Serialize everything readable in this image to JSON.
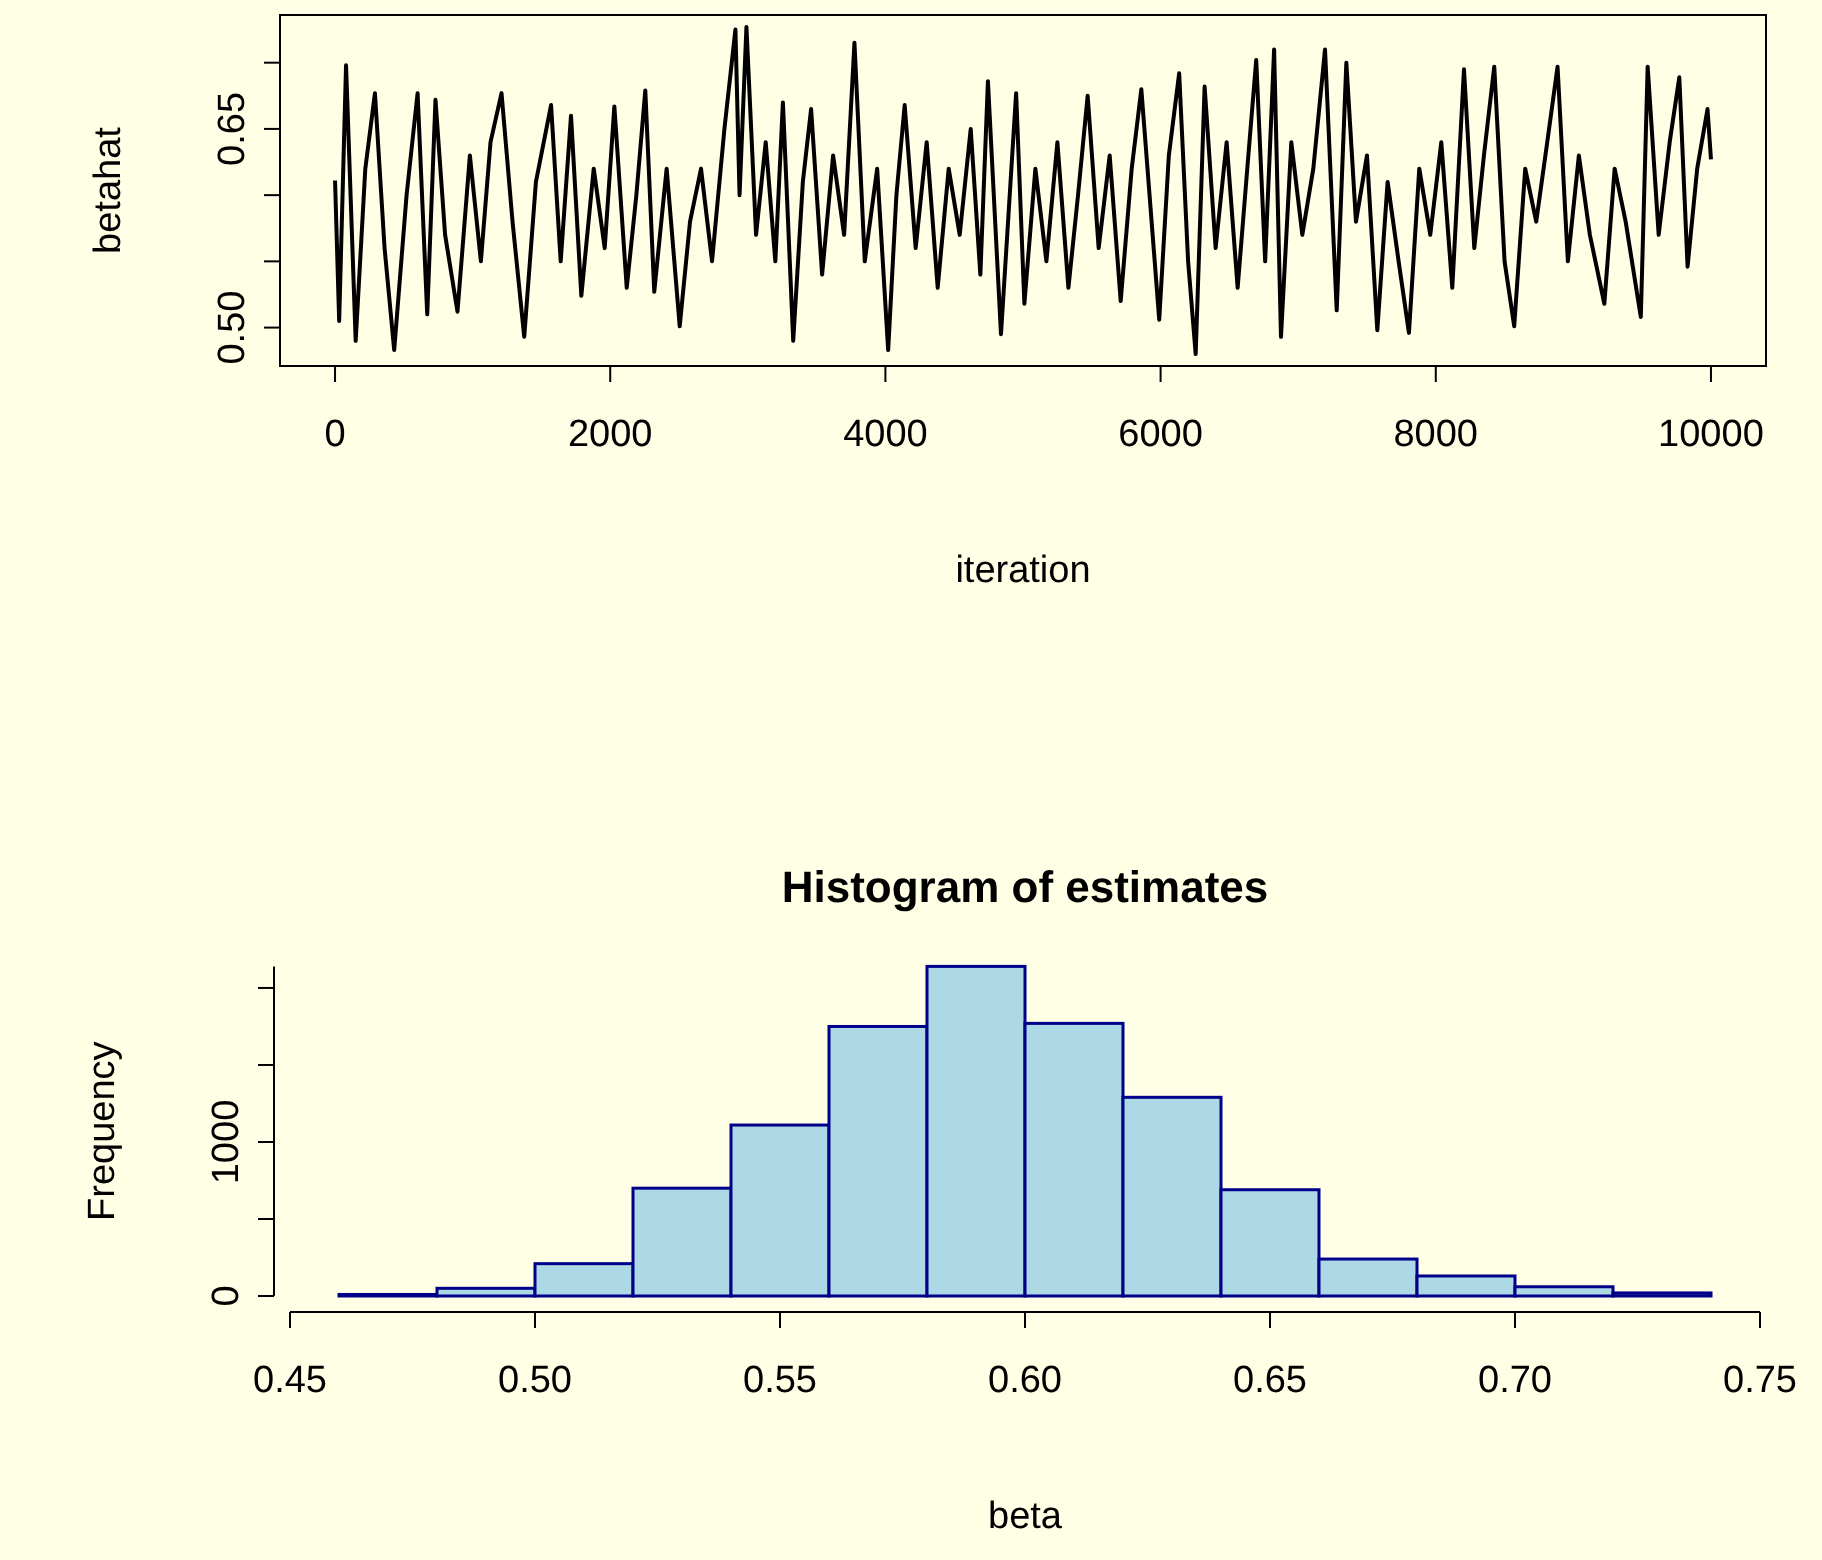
{
  "chart_data": [
    {
      "type": "line",
      "xlabel": "iteration",
      "ylabel": "betahat",
      "xlim": [
        -400,
        10400
      ],
      "ylim": [
        0.471,
        0.736
      ],
      "xticks": [
        0,
        2000,
        4000,
        6000,
        8000,
        10000
      ],
      "yticks": [
        {
          "value": 0.5,
          "label": "0.50"
        },
        {
          "value": 0.55,
          "label": null
        },
        {
          "value": 0.6,
          "label": null
        },
        {
          "value": 0.65,
          "label": "0.65"
        },
        {
          "value": 0.7,
          "label": null
        }
      ],
      "series": [
        {
          "color": "#000000",
          "x": [
            0,
            30,
            80,
            150,
            220,
            290,
            360,
            430,
            520,
            600,
            670,
            730,
            800,
            890,
            980,
            1060,
            1130,
            1210,
            1290,
            1375,
            1460,
            1570,
            1640,
            1715,
            1790,
            1880,
            1960,
            2030,
            2120,
            2190,
            2255,
            2320,
            2410,
            2505,
            2580,
            2660,
            2740,
            2830,
            2910,
            2940,
            2990,
            3060,
            3130,
            3200,
            3255,
            3330,
            3400,
            3460,
            3540,
            3620,
            3700,
            3775,
            3850,
            3940,
            4020,
            4080,
            4140,
            4220,
            4300,
            4380,
            4460,
            4540,
            4620,
            4690,
            4745,
            4840,
            4950,
            5010,
            5090,
            5170,
            5250,
            5330,
            5400,
            5470,
            5550,
            5630,
            5710,
            5790,
            5860,
            5990,
            6060,
            6135,
            6200,
            6255,
            6320,
            6400,
            6480,
            6560,
            6630,
            6695,
            6760,
            6825,
            6875,
            6950,
            7030,
            7110,
            7195,
            7280,
            7350,
            7420,
            7500,
            7575,
            7650,
            7730,
            7805,
            7880,
            7960,
            8040,
            8120,
            8205,
            8280,
            8350,
            8425,
            8500,
            8570,
            8650,
            8730,
            8810,
            8885,
            8960,
            9040,
            9120,
            9225,
            9300,
            9380,
            9490,
            9540,
            9620,
            9700,
            9770,
            9830,
            9900,
            9975,
            10000
          ],
          "values": [
            0.611,
            0.505,
            0.698,
            0.49,
            0.62,
            0.677,
            0.56,
            0.483,
            0.6,
            0.677,
            0.51,
            0.672,
            0.57,
            0.512,
            0.63,
            0.55,
            0.64,
            0.677,
            0.58,
            0.493,
            0.61,
            0.668,
            0.55,
            0.66,
            0.524,
            0.62,
            0.56,
            0.667,
            0.53,
            0.6,
            0.679,
            0.527,
            0.62,
            0.501,
            0.58,
            0.62,
            0.55,
            0.65,
            0.725,
            0.6,
            0.727,
            0.57,
            0.64,
            0.55,
            0.67,
            0.49,
            0.61,
            0.665,
            0.54,
            0.63,
            0.57,
            0.715,
            0.55,
            0.62,
            0.483,
            0.6,
            0.668,
            0.56,
            0.64,
            0.53,
            0.62,
            0.57,
            0.65,
            0.54,
            0.686,
            0.495,
            0.677,
            0.518,
            0.62,
            0.55,
            0.64,
            0.53,
            0.6,
            0.675,
            0.56,
            0.63,
            0.52,
            0.62,
            0.68,
            0.506,
            0.63,
            0.692,
            0.55,
            0.48,
            0.682,
            0.56,
            0.64,
            0.53,
            0.62,
            0.702,
            0.55,
            0.71,
            0.493,
            0.64,
            0.57,
            0.62,
            0.71,
            0.513,
            0.7,
            0.58,
            0.63,
            0.498,
            0.61,
            0.55,
            0.496,
            0.62,
            0.57,
            0.64,
            0.53,
            0.695,
            0.56,
            0.63,
            0.697,
            0.55,
            0.501,
            0.62,
            0.58,
            0.64,
            0.697,
            0.55,
            0.63,
            0.57,
            0.518,
            0.62,
            0.58,
            0.508,
            0.697,
            0.57,
            0.64,
            0.689,
            0.546,
            0.62,
            0.665,
            0.627
          ]
        }
      ]
    },
    {
      "type": "histogram",
      "title": "Histogram of estimates",
      "xlabel": "beta",
      "ylabel": "Frequency",
      "color": "#add8e6",
      "bins": [
        0.46,
        0.48,
        0.5,
        0.52,
        0.54,
        0.56,
        0.58,
        0.6,
        0.62,
        0.64,
        0.66,
        0.68,
        0.7,
        0.72,
        0.74
      ],
      "values": [
        10,
        50,
        210,
        700,
        1110,
        1750,
        2140,
        1770,
        1290,
        690,
        240,
        130,
        60,
        20
      ],
      "xlim": [
        0.45,
        0.75
      ],
      "ylim": [
        0,
        2140
      ],
      "xticks": [
        {
          "value": 0.45,
          "label": "0.45"
        },
        {
          "value": 0.5,
          "label": "0.50"
        },
        {
          "value": 0.55,
          "label": "0.55"
        },
        {
          "value": 0.6,
          "label": "0.60"
        },
        {
          "value": 0.65,
          "label": "0.65"
        },
        {
          "value": 0.7,
          "label": "0.70"
        },
        {
          "value": 0.75,
          "label": "0.75"
        }
      ],
      "yticks": [
        0,
        {
          "value": 500,
          "label": null
        },
        1000,
        {
          "value": 1500,
          "label": null
        },
        {
          "value": 2000,
          "label": null
        }
      ]
    }
  ]
}
